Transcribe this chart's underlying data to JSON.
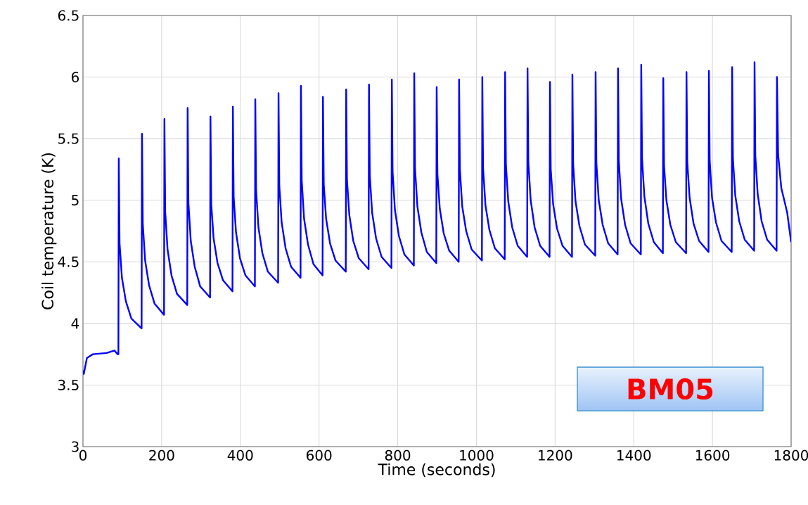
{
  "chart_data": {
    "type": "line",
    "xlabel": "Time (seconds)",
    "ylabel": "Coil temperature (K)",
    "xlim": [
      0,
      1800
    ],
    "ylim": [
      3,
      6.5
    ],
    "xticks": [
      0,
      200,
      400,
      600,
      800,
      1000,
      1200,
      1400,
      1600,
      1800
    ],
    "yticks": [
      3,
      3.5,
      4,
      4.5,
      5,
      5.5,
      6,
      6.5
    ],
    "grid": true,
    "marker": "none",
    "line_style": "solid",
    "annotations": [
      "BM05"
    ],
    "series": [
      {
        "color": "#0000ff",
        "x": [
          0,
          2,
          10,
          25,
          60,
          80,
          88,
          90,
          91,
          93,
          99,
          109,
          123,
          149,
          150,
          152,
          158,
          168,
          182,
          206,
          207,
          209,
          215,
          225,
          239,
          265,
          266,
          268,
          274,
          284,
          298,
          323,
          324,
          326,
          332,
          342,
          356,
          380,
          381,
          383,
          389,
          399,
          413,
          437,
          438,
          440,
          446,
          456,
          470,
          496,
          497,
          499,
          505,
          515,
          529,
          553,
          554,
          556,
          562,
          572,
          586,
          609,
          610,
          612,
          618,
          628,
          642,
          668,
          669,
          671,
          677,
          687,
          701,
          726,
          727,
          729,
          735,
          745,
          759,
          784,
          785,
          787,
          793,
          803,
          817,
          841,
          842,
          844,
          850,
          860,
          874,
          898,
          899,
          901,
          907,
          917,
          931,
          955,
          956,
          958,
          964,
          974,
          988,
          1014,
          1015,
          1017,
          1023,
          1033,
          1047,
          1072,
          1073,
          1075,
          1081,
          1091,
          1105,
          1129,
          1130,
          1132,
          1138,
          1148,
          1162,
          1186,
          1187,
          1189,
          1195,
          1205,
          1219,
          1243,
          1244,
          1246,
          1252,
          1262,
          1276,
          1302,
          1303,
          1305,
          1311,
          1321,
          1335,
          1359,
          1360,
          1362,
          1368,
          1378,
          1392,
          1418,
          1419,
          1421,
          1427,
          1437,
          1451,
          1474,
          1475,
          1477,
          1483,
          1493,
          1507,
          1533,
          1534,
          1536,
          1542,
          1552,
          1566,
          1590,
          1591,
          1593,
          1599,
          1609,
          1623,
          1649,
          1650,
          1652,
          1658,
          1668,
          1682,
          1706,
          1707,
          1709,
          1715,
          1725,
          1739,
          1763,
          1764,
          1767,
          1775,
          1790,
          1800
        ],
        "values": [
          3.62,
          3.59,
          3.72,
          3.75,
          3.76,
          3.78,
          3.75,
          3.75,
          5.34,
          4.65,
          4.37,
          4.18,
          4.04,
          3.96,
          5.54,
          4.81,
          4.51,
          4.31,
          4.16,
          4.07,
          5.66,
          4.91,
          4.6,
          4.39,
          4.24,
          4.15,
          5.75,
          4.98,
          4.67,
          4.46,
          4.3,
          4.21,
          5.68,
          4.97,
          4.69,
          4.49,
          4.35,
          4.26,
          5.76,
          5.03,
          4.74,
          4.53,
          4.39,
          4.3,
          5.82,
          5.08,
          4.78,
          4.57,
          4.42,
          4.33,
          5.87,
          5.12,
          4.82,
          4.61,
          4.46,
          4.37,
          5.93,
          5.16,
          4.85,
          4.64,
          4.48,
          4.39,
          5.84,
          5.13,
          4.85,
          4.65,
          4.51,
          4.42,
          5.9,
          5.17,
          4.88,
          4.67,
          4.53,
          4.44,
          5.94,
          5.2,
          4.9,
          4.69,
          4.54,
          4.45,
          5.98,
          5.23,
          4.92,
          4.71,
          4.56,
          4.47,
          6.03,
          5.26,
          4.95,
          4.74,
          4.58,
          4.49,
          5.92,
          5.21,
          4.93,
          4.73,
          4.59,
          4.5,
          5.98,
          5.25,
          4.95,
          4.75,
          4.6,
          4.51,
          6.0,
          5.26,
          4.96,
          4.76,
          4.61,
          4.52,
          6.04,
          5.29,
          4.99,
          4.78,
          4.63,
          4.54,
          6.07,
          5.31,
          5.0,
          4.78,
          4.63,
          4.54,
          5.96,
          5.25,
          4.97,
          4.77,
          4.63,
          4.54,
          6.02,
          5.29,
          4.99,
          4.79,
          4.64,
          4.55,
          6.04,
          5.3,
          5.0,
          4.8,
          4.65,
          4.56,
          6.07,
          5.32,
          5.01,
          4.8,
          4.65,
          4.56,
          6.1,
          5.34,
          5.03,
          4.81,
          4.66,
          4.57,
          5.99,
          5.28,
          5.0,
          4.8,
          4.66,
          4.57,
          6.04,
          5.31,
          5.02,
          4.81,
          4.67,
          4.58,
          6.05,
          5.32,
          5.02,
          4.82,
          4.67,
          4.58,
          6.08,
          5.34,
          5.04,
          4.83,
          4.68,
          4.59,
          6.12,
          5.36,
          5.05,
          4.83,
          4.68,
          4.59,
          6.0,
          5.37,
          5.1,
          4.9,
          4.66
        ]
      }
    ]
  }
}
